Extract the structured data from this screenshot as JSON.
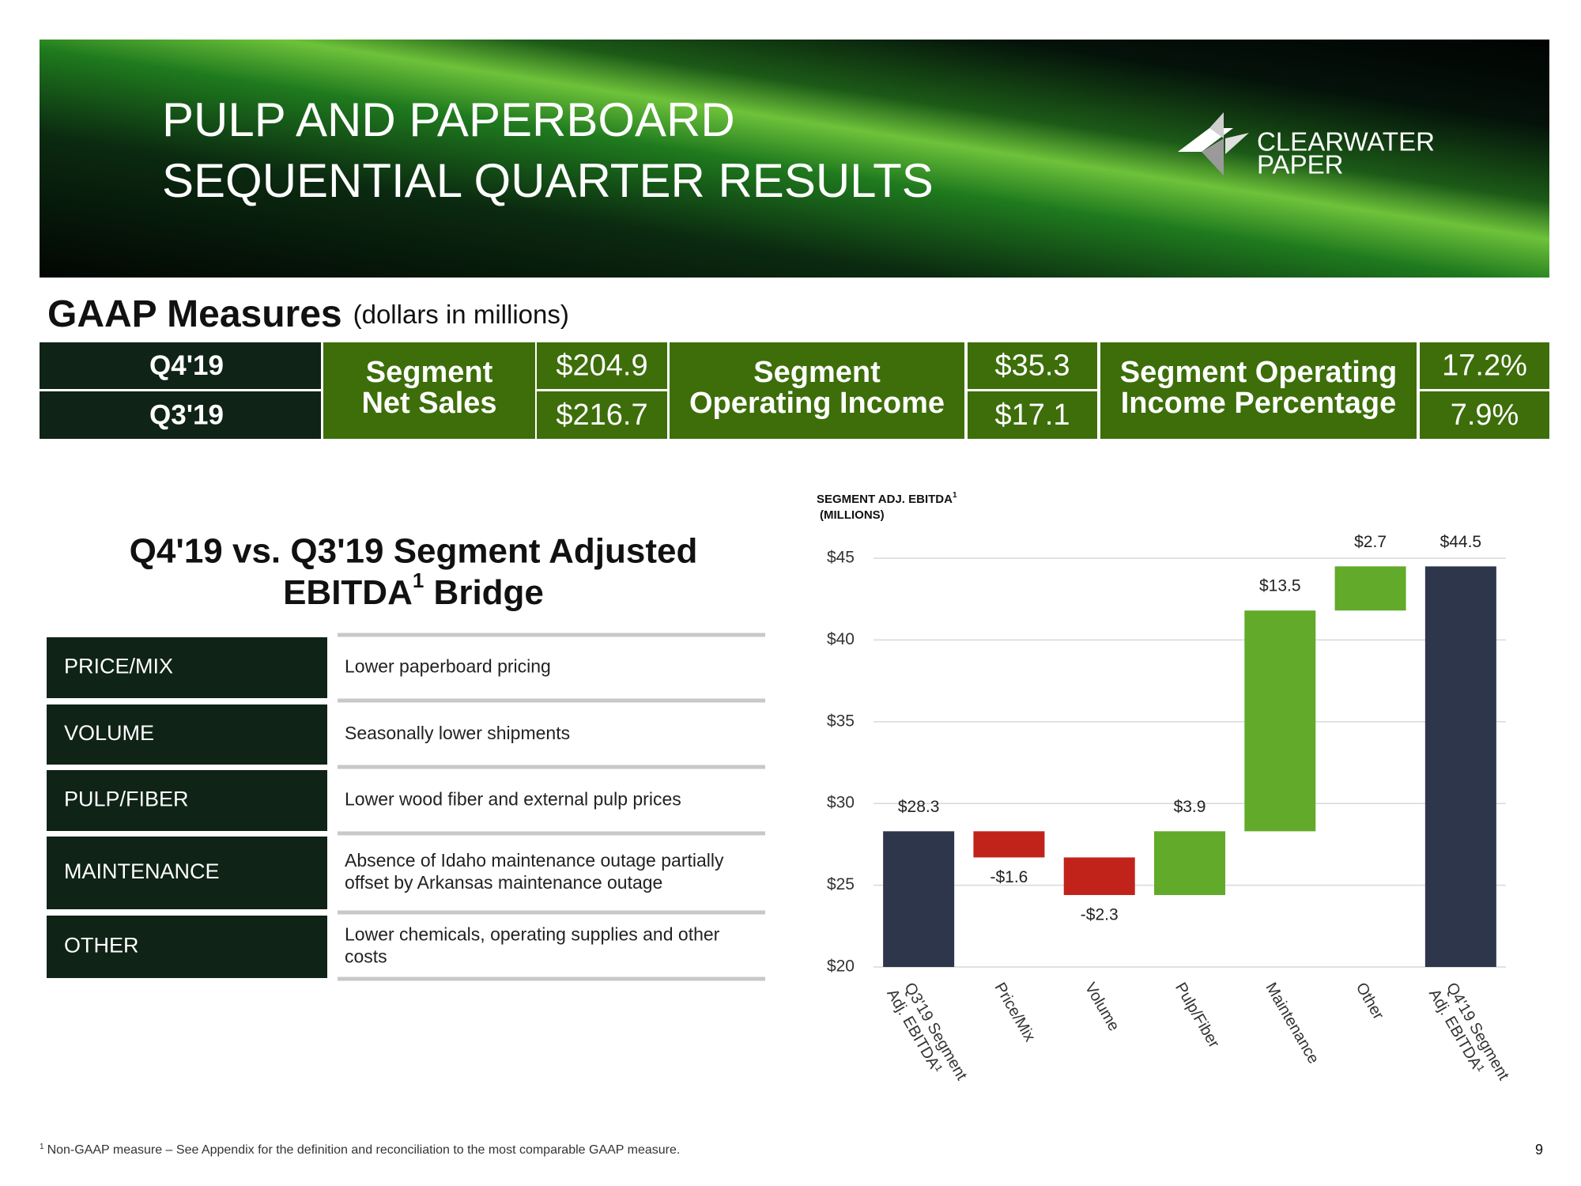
{
  "header": {
    "title": [
      "PULP AND PAPERBOARD",
      "SEQUENTIAL QUARTER RESULTS"
    ],
    "logo": [
      "CLEARWATER",
      "PAPER"
    ]
  },
  "gaap": {
    "title": "GAAP Measures",
    "subtitle": "(dollars in millions)",
    "periods": [
      "Q4'19",
      "Q3'19"
    ],
    "measures": [
      {
        "label": [
          "Segment",
          "Net Sales"
        ],
        "values": [
          "$204.9",
          "$216.7"
        ]
      },
      {
        "label": [
          "Segment",
          "Operating Income"
        ],
        "values": [
          "$35.3",
          "$17.1"
        ]
      },
      {
        "label": [
          "Segment Operating",
          "Income Percentage"
        ],
        "values": [
          "17.2%",
          "7.9%"
        ]
      }
    ]
  },
  "bridge": {
    "title": {
      "line1": "Q4'19 vs. Q3'19 Segment Adjusted",
      "line2": "EBITDA",
      "sup": "1",
      "line2_end": " Bridge"
    },
    "rows": [
      {
        "label": "PRICE/MIX",
        "description": [
          "Lower paperboard pricing"
        ]
      },
      {
        "label": "VOLUME",
        "description": [
          "Seasonally lower shipments"
        ]
      },
      {
        "label": "PULP/FIBER",
        "description": [
          "Lower wood fiber and external pulp prices"
        ]
      },
      {
        "label": "MAINTENANCE",
        "description": [
          "Absence of Idaho maintenance outage partially",
          "offset by Arkansas maintenance outage"
        ]
      },
      {
        "label": "OTHER",
        "description": [
          "Lower chemicals, operating supplies and other",
          "costs"
        ]
      }
    ]
  },
  "chart_data": {
    "type": "waterfall",
    "title": "SEGMENT ADJ. EBITDA",
    "title_sup": "1",
    "subtitle": "(MILLIONS)",
    "categories": [
      [
        "Q3'19 Segment",
        "Adj. EBITDA¹"
      ],
      [
        "Price/Mix"
      ],
      [
        "Volume"
      ],
      [
        "Pulp/Fiber"
      ],
      [
        "Maintenance"
      ],
      [
        "Other"
      ],
      [
        "Q4'19 Segment",
        "Adj. EBITDA¹"
      ]
    ],
    "values": [
      28.3,
      -1.6,
      -2.3,
      3.9,
      13.5,
      2.7,
      44.5
    ],
    "value_labels": [
      "$28.3",
      "-$1.6",
      "-$2.3",
      "$3.9",
      "$13.5",
      "$2.7",
      "$44.5"
    ],
    "total_color": "#2e364b",
    "increase_color": "#62aa2a",
    "decrease_color": "#c1231b",
    "ylim": [
      20,
      45
    ],
    "yticks": [
      {
        "value": 20,
        "label": "$20"
      },
      {
        "value": 25,
        "label": "$25"
      },
      {
        "value": 30,
        "label": "$30"
      },
      {
        "value": 35,
        "label": "$35"
      },
      {
        "value": 40,
        "label": "$40"
      },
      {
        "value": 45,
        "label": "$45"
      }
    ],
    "grid": true
  },
  "footnote": {
    "mark": "1",
    "text": "Non-GAAP measure – See Appendix for the definition and reconciliation to the most comparable GAAP measure."
  },
  "page_number": "9"
}
